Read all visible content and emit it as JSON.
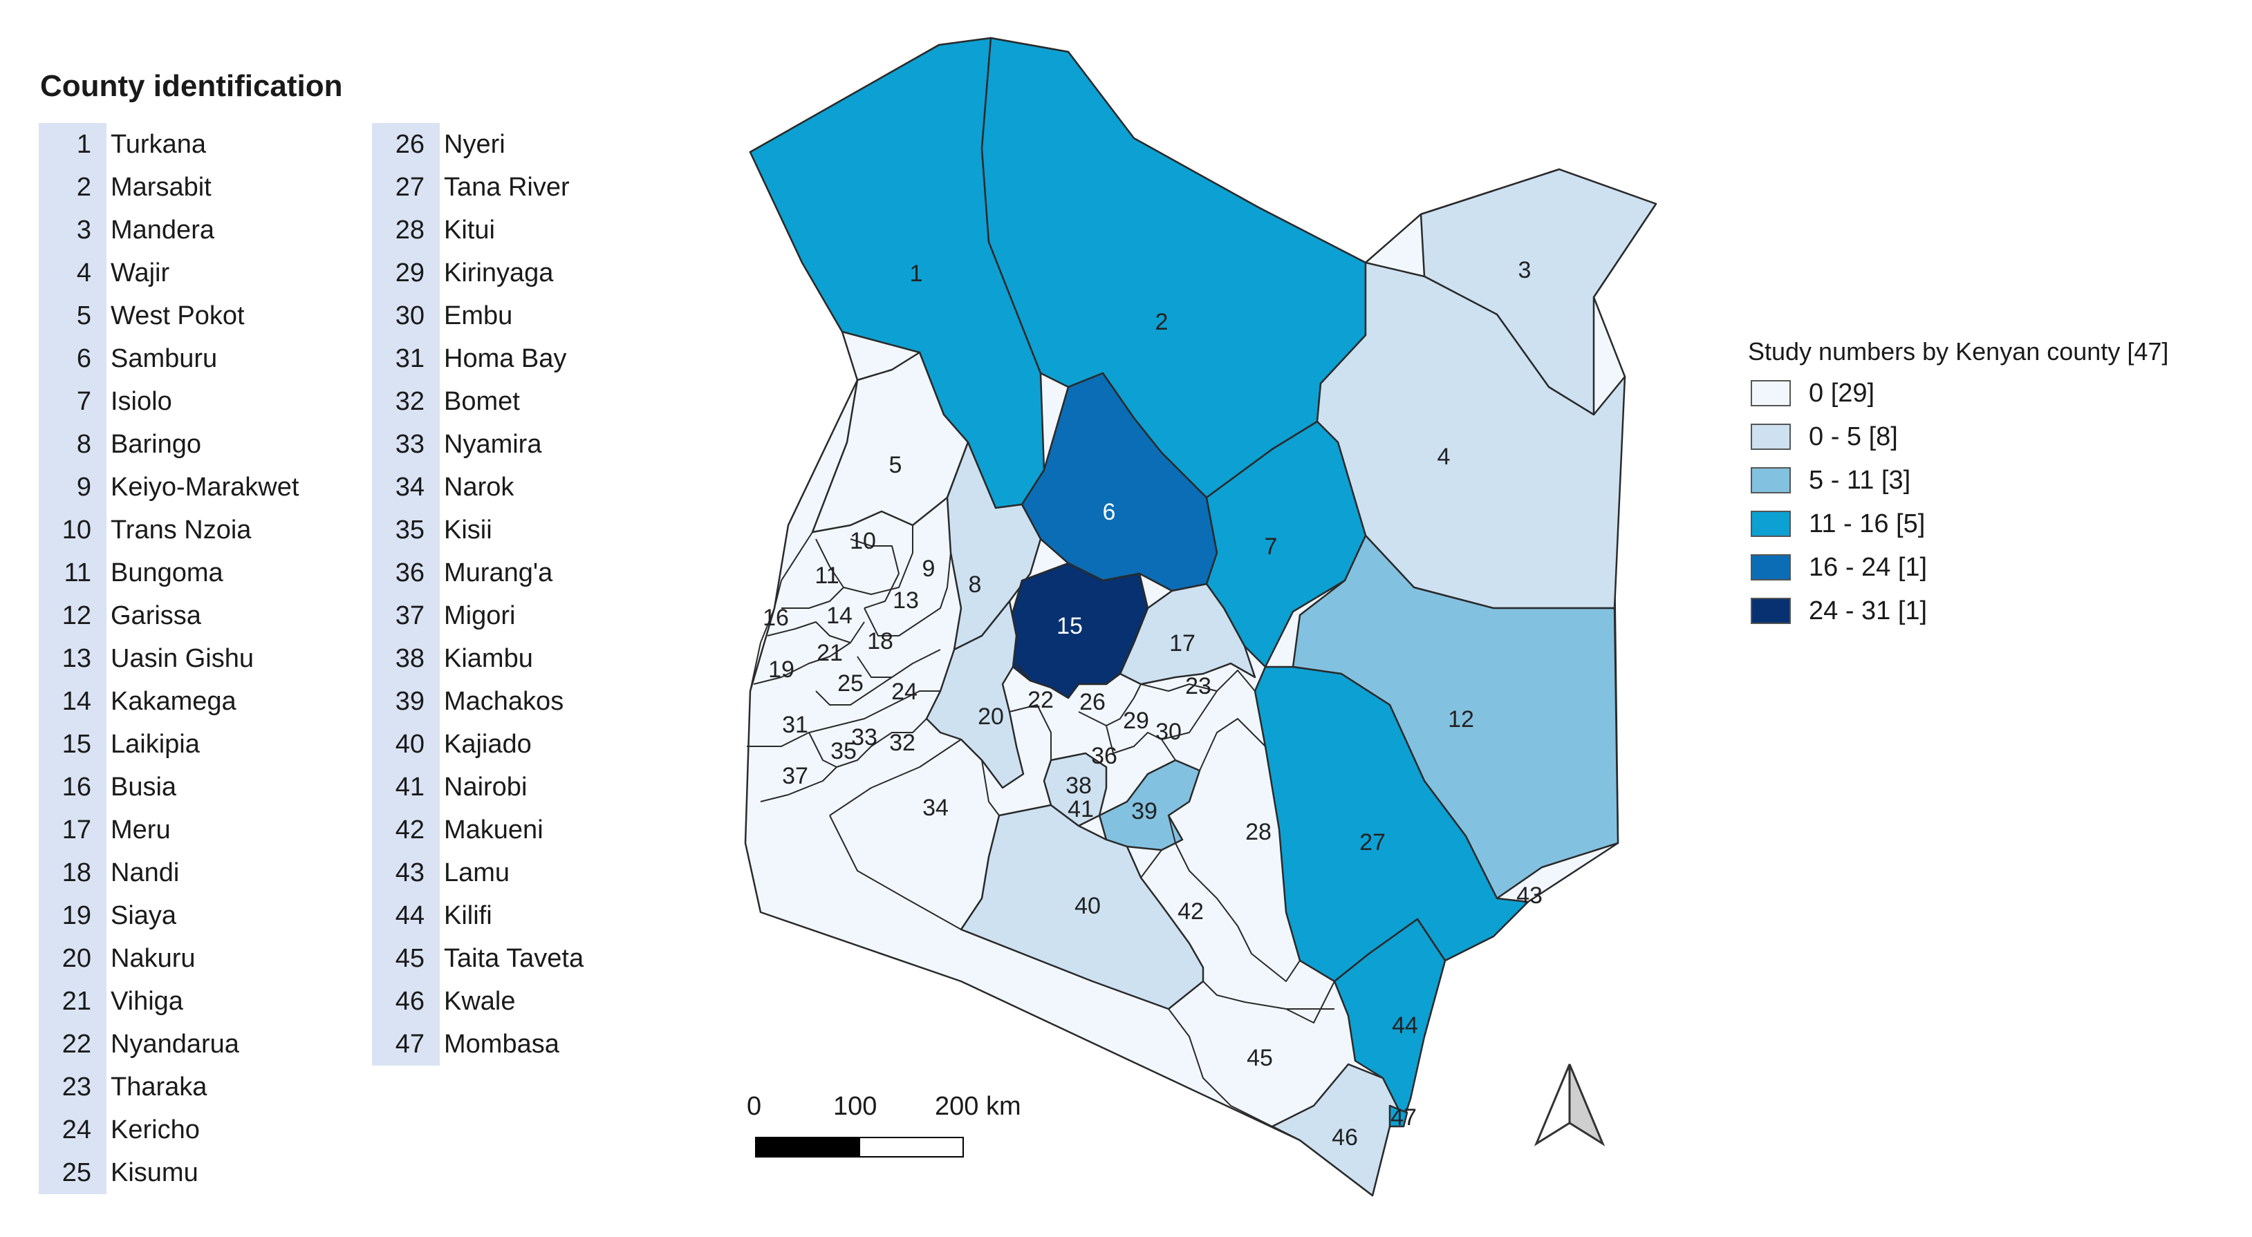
{
  "county_panel": {
    "title": "County identification",
    "col1": [
      {
        "num": "1",
        "name": "Turkana"
      },
      {
        "num": "2",
        "name": "Marsabit"
      },
      {
        "num": "3",
        "name": "Mandera"
      },
      {
        "num": "4",
        "name": "Wajir"
      },
      {
        "num": "5",
        "name": "West Pokot"
      },
      {
        "num": "6",
        "name": "Samburu"
      },
      {
        "num": "7",
        "name": "Isiolo"
      },
      {
        "num": "8",
        "name": "Baringo"
      },
      {
        "num": "9",
        "name": "Keiyo-Marakwet"
      },
      {
        "num": "10",
        "name": "Trans Nzoia"
      },
      {
        "num": "11",
        "name": "Bungoma"
      },
      {
        "num": "12",
        "name": "Garissa"
      },
      {
        "num": "13",
        "name": "Uasin Gishu"
      },
      {
        "num": "14",
        "name": "Kakamega"
      },
      {
        "num": "15",
        "name": "Laikipia"
      },
      {
        "num": "16",
        "name": "Busia"
      },
      {
        "num": "17",
        "name": "Meru"
      },
      {
        "num": "18",
        "name": "Nandi"
      },
      {
        "num": "19",
        "name": "Siaya"
      },
      {
        "num": "20",
        "name": "Nakuru"
      },
      {
        "num": "21",
        "name": "Vihiga"
      },
      {
        "num": "22",
        "name": "Nyandarua"
      },
      {
        "num": "23",
        "name": "Tharaka"
      },
      {
        "num": "24",
        "name": "Kericho"
      },
      {
        "num": "25",
        "name": "Kisumu"
      }
    ],
    "col2": [
      {
        "num": "26",
        "name": "Nyeri"
      },
      {
        "num": "27",
        "name": "Tana River"
      },
      {
        "num": "28",
        "name": "Kitui"
      },
      {
        "num": "29",
        "name": "Kirinyaga"
      },
      {
        "num": "30",
        "name": "Embu"
      },
      {
        "num": "31",
        "name": "Homa Bay"
      },
      {
        "num": "32",
        "name": "Bomet"
      },
      {
        "num": "33",
        "name": "Nyamira"
      },
      {
        "num": "34",
        "name": "Narok"
      },
      {
        "num": "35",
        "name": "Kisii"
      },
      {
        "num": "36",
        "name": "Murang'a"
      },
      {
        "num": "37",
        "name": "Migori"
      },
      {
        "num": "38",
        "name": "Kiambu"
      },
      {
        "num": "39",
        "name": "Machakos"
      },
      {
        "num": "40",
        "name": "Kajiado"
      },
      {
        "num": "41",
        "name": "Nairobi"
      },
      {
        "num": "42",
        "name": "Makueni"
      },
      {
        "num": "43",
        "name": "Lamu"
      },
      {
        "num": "44",
        "name": "Kilifi"
      },
      {
        "num": "45",
        "name": "Taita Taveta"
      },
      {
        "num": "46",
        "name": "Kwale"
      },
      {
        "num": "47",
        "name": "Mombasa"
      }
    ]
  },
  "legend": {
    "title": "Study numbers by Kenyan county [47]",
    "classes": [
      {
        "label": "0 [29]",
        "color": "#f2f7fd"
      },
      {
        "label": " 0 - 5 [8]",
        "color": "#cde1f1"
      },
      {
        "label": " 5 - 11 [3]",
        "color": "#83c1e0"
      },
      {
        "label": " 11 - 16 [5]",
        "color": "#0da0d2"
      },
      {
        "label": " 16 - 24  [1]",
        "color": "#0a6db5"
      },
      {
        "label": " 24 - 31 [1]",
        "color": "#073170"
      }
    ]
  },
  "scale_bar": {
    "labels": [
      "0",
      "100",
      "200 km"
    ]
  },
  "map": {
    "county_labels": [
      "1",
      "2",
      "3",
      "4",
      "5",
      "6",
      "7",
      "8",
      "9",
      "10",
      "11",
      "12",
      "13",
      "14",
      "15",
      "16",
      "17",
      "18",
      "19",
      "20",
      "21",
      "22",
      "23",
      "24",
      "25",
      "26",
      "27",
      "28",
      "29",
      "30",
      "31",
      "32",
      "33",
      "34",
      "35",
      "36",
      "37",
      "38",
      "39",
      "40",
      "41",
      "42",
      "43",
      "44",
      "45",
      "46",
      "47"
    ],
    "north_arrow": "north-arrow-icon"
  }
}
